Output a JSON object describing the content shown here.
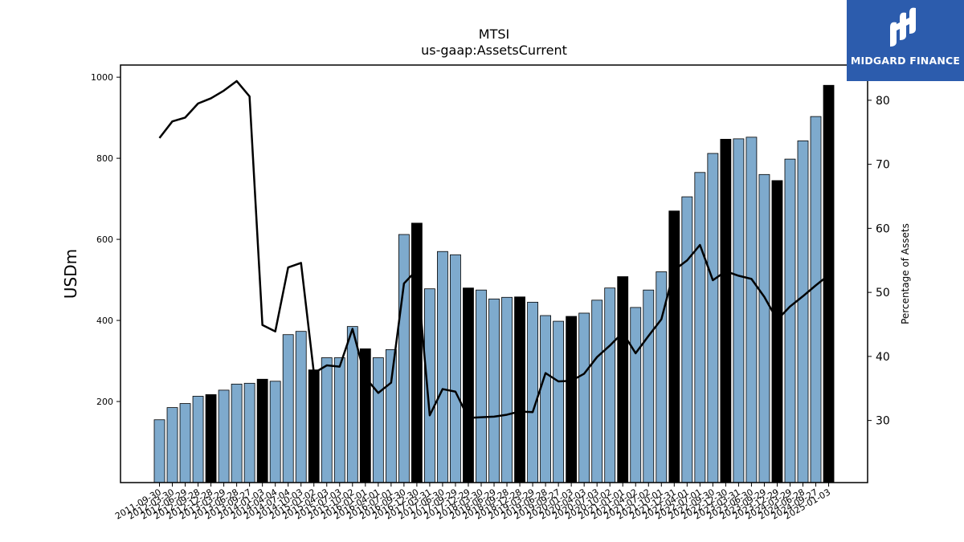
{
  "header": {
    "ticker": "MTSI",
    "metric": "us-gaap:AssetsCurrent"
  },
  "logo": {
    "brand": "MIDGARD FINANCE",
    "bg_color": "#2c5cad",
    "icon": "midgard-logo-icon"
  },
  "chart_data": {
    "type": "bar",
    "title": "MTSI",
    "subtitle": "us-gaap:AssetsCurrent",
    "ylabel": "USDm",
    "y2label": "Percentage of Assets",
    "ylim": [
      0,
      1030
    ],
    "y2lim": [
      20.3,
      85.5
    ],
    "yticks": [
      200,
      400,
      600,
      800,
      1000
    ],
    "y2ticks": [
      30,
      40,
      50,
      60,
      70,
      80
    ],
    "colors": {
      "bar": "#7eaacd",
      "bar_highlight": "#000000",
      "line": "#000000"
    },
    "categories": [
      "2011-09-30",
      "2012-03-30",
      "2012-06-29",
      "2012-09-28",
      "2012-12-28",
      "2013-03-29",
      "2013-06-28",
      "2013-09-27",
      "2014-01-03",
      "2014-04-04",
      "2014-07-04",
      "2014-10-03",
      "2015-01-02",
      "2015-04-03",
      "2015-07-03",
      "2015-10-02",
      "2016-01-01",
      "2016-04-01",
      "2016-07-01",
      "2016-09-30",
      "2016-12-30",
      "2017-03-31",
      "2017-06-30",
      "2017-09-29",
      "2017-12-29",
      "2018-03-30",
      "2018-06-29",
      "2018-09-28",
      "2018-12-28",
      "2019-03-29",
      "2019-06-28",
      "2019-09-27",
      "2020-01-03",
      "2020-04-03",
      "2020-07-03",
      "2020-10-02",
      "2021-01-01",
      "2021-04-02",
      "2021-07-02",
      "2021-10-01",
      "2021-12-31",
      "2022-04-01",
      "2022-07-01",
      "2022-09-30",
      "2022-12-30",
      "2023-03-31",
      "2023-06-30",
      "2023-09-29",
      "2023-12-29",
      "2024-03-29",
      "2024-06-28",
      "2024-09-27",
      "2025-01-03"
    ],
    "series": [
      {
        "kind": "bar",
        "values": [
          155,
          185,
          195,
          213,
          217,
          228,
          243,
          245,
          255,
          250,
          365,
          373,
          278,
          308,
          308,
          385,
          330,
          308,
          328,
          612,
          640,
          478,
          570,
          562,
          480,
          475,
          453,
          457,
          458,
          445,
          412,
          398,
          410,
          418,
          450,
          480,
          508,
          432,
          475,
          520,
          670,
          705,
          765,
          812,
          847,
          848,
          852,
          760,
          745,
          798,
          843,
          903,
          980
        ]
      },
      {
        "kind": "line",
        "values": [
          74.1,
          76.7,
          77.3,
          79.5,
          80.3,
          81.5,
          83.0,
          80.6,
          44.9,
          43.9,
          53.9,
          54.6,
          37.4,
          38.6,
          38.4,
          44.3,
          36.7,
          34.3,
          35.9,
          51.4,
          53.5,
          30.8,
          34.9,
          34.5,
          30.4,
          30.5,
          30.6,
          30.9,
          31.4,
          31.3,
          37.4,
          36.1,
          36.2,
          37.3,
          39.9,
          41.7,
          43.7,
          40.5,
          43.2,
          45.8,
          53.5,
          55.0,
          57.4,
          51.9,
          53.3,
          52.6,
          52.1,
          49.3,
          45.7,
          47.8,
          49.4,
          51.1,
          52.7
        ]
      }
    ],
    "highlighted_indices": [
      4,
      8,
      12,
      16,
      20,
      24,
      28,
      32,
      36,
      40,
      44,
      48,
      52
    ]
  }
}
